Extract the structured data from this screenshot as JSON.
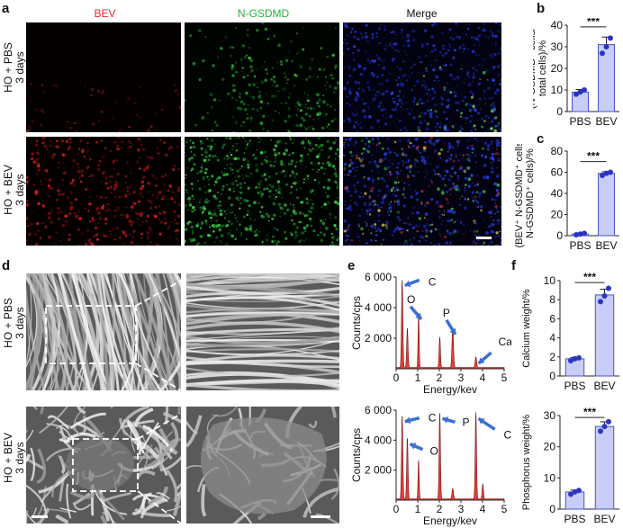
{
  "panel_letters": [
    "a",
    "b",
    "c",
    "d",
    "e",
    "f"
  ],
  "a": {
    "columns": [
      "BEV",
      "N-GSDMD",
      "Merge"
    ],
    "column_colors": [
      "#e8242a",
      "#27b23a",
      "#111111"
    ],
    "rows": [
      [
        "HO + PBS",
        "3 days"
      ],
      [
        "HO + BEV",
        "3 days"
      ]
    ]
  },
  "d": {
    "rows": [
      [
        "HO + PBS",
        "3 days"
      ],
      [
        "HO + BEV",
        "3 days"
      ]
    ]
  },
  "colors": {
    "bar_fill": "#c8cdf5",
    "bar_edge": "#4a55c8",
    "point": "#2a35c0",
    "eds_fill": "#e0423a"
  },
  "chart_data": [
    {
      "id": "b",
      "type": "bar",
      "ylabel": [
        "(N-GSDMD⁺ cells/",
        "total cells)/%"
      ],
      "categories": [
        "PBS",
        "BEV"
      ],
      "values": [
        9,
        31
      ],
      "errors": [
        1.2,
        3.5
      ],
      "points": [
        [
          8,
          9,
          10
        ],
        [
          27,
          30,
          34
        ]
      ],
      "ylim": [
        0,
        40
      ],
      "yticks": [
        "0",
        "10",
        "20",
        "30",
        "40"
      ],
      "significance": "***"
    },
    {
      "id": "c",
      "type": "bar",
      "ylabel": [
        "(BEV⁺ N-GSDMD⁺ cells/",
        "N-GSDMD⁺ cells)/%"
      ],
      "categories": [
        "PBS",
        "BEV"
      ],
      "values": [
        1.5,
        59
      ],
      "errors": [
        0.8,
        1.5
      ],
      "points": [
        [
          0.8,
          1.5,
          2.2
        ],
        [
          57,
          59,
          60
        ]
      ],
      "ylim": [
        0,
        80
      ],
      "yticks": [
        "0",
        "20",
        "40",
        "60",
        "80"
      ],
      "significance": "***"
    },
    {
      "id": "e_top",
      "type": "area",
      "xlabel": "Energy/kev",
      "ylabel": "Counts/cps",
      "xlim": [
        0,
        5
      ],
      "ylim": [
        0,
        6000
      ],
      "xticks": [
        "0",
        "1",
        "2",
        "3",
        "4",
        "5"
      ],
      "yticks": [
        "2 000",
        "4 000",
        "6 000"
      ],
      "peaks": [
        [
          0.28,
          5800,
          0.03
        ],
        [
          0.52,
          2600,
          0.03
        ],
        [
          1.04,
          3600,
          0.025
        ],
        [
          2.02,
          2000,
          0.03
        ],
        [
          2.62,
          2600,
          0.035
        ],
        [
          3.69,
          700,
          0.035
        ]
      ],
      "baseline": 80,
      "annotations": [
        "C",
        "O",
        "P",
        "Ca"
      ]
    },
    {
      "id": "e_bottom",
      "type": "area",
      "xlabel": "Energy/kev",
      "ylabel": "Counts/cps",
      "xlim": [
        0,
        5
      ],
      "ylim": [
        0,
        6000
      ],
      "xticks": [
        "0",
        "1",
        "2",
        "3",
        "4",
        "5"
      ],
      "yticks": [
        "2 000",
        "4 000",
        "6 000"
      ],
      "peaks": [
        [
          0.28,
          5600,
          0.03
        ],
        [
          0.52,
          4100,
          0.03
        ],
        [
          1.04,
          2600,
          0.025
        ],
        [
          2.02,
          5800,
          0.03
        ],
        [
          2.62,
          700,
          0.035
        ],
        [
          3.69,
          5800,
          0.03
        ],
        [
          4.01,
          1000,
          0.03
        ]
      ],
      "baseline": 80,
      "annotations": [
        "C",
        "O",
        "P",
        "Ca"
      ]
    },
    {
      "id": "f_top",
      "type": "bar",
      "ylabel": [
        "Calcium weight/%"
      ],
      "categories": [
        "PBS",
        "BEV"
      ],
      "values": [
        1.8,
        8.5
      ],
      "errors": [
        0.15,
        0.6
      ],
      "points": [
        [
          1.6,
          1.8,
          1.9
        ],
        [
          7.8,
          8.4,
          9.2
        ]
      ],
      "ylim": [
        0,
        10
      ],
      "yticks": [
        "0",
        "2",
        "4",
        "6",
        "8",
        "10"
      ],
      "significance": "***"
    },
    {
      "id": "f_bottom",
      "type": "bar",
      "ylabel": [
        "Phosphorus weight/%"
      ],
      "categories": [
        "PBS",
        "BEV"
      ],
      "values": [
        5.5,
        26.5
      ],
      "errors": [
        0.6,
        1.5
      ],
      "points": [
        [
          4.8,
          5.5,
          6.0
        ],
        [
          25,
          26.5,
          28
        ]
      ],
      "ylim": [
        0,
        30
      ],
      "yticks": [
        "0",
        "10",
        "20",
        "30"
      ],
      "significance": "***"
    }
  ]
}
